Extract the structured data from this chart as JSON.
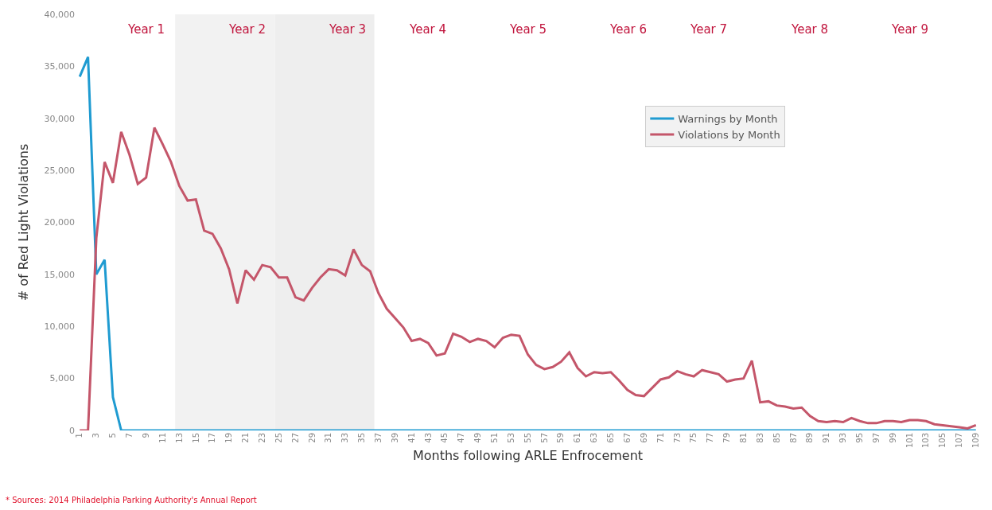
{
  "chart_data": {
    "type": "line",
    "xlabel": "Months following ARLE Enfrocement",
    "ylabel": "# of Red Light Violations",
    "categories": [
      "1",
      null,
      "3",
      null,
      "5",
      null,
      "7",
      null,
      "9",
      null,
      "11",
      null,
      "13",
      null,
      "15",
      null,
      "17",
      null,
      "19",
      null,
      "21",
      null,
      "23",
      null,
      "25",
      null,
      "27",
      null,
      "29",
      null,
      "31",
      null,
      "33",
      null,
      "35",
      null,
      "37",
      null,
      "39",
      null,
      "41",
      null,
      "43",
      null,
      "45",
      null,
      "47",
      null,
      "49",
      null,
      "51",
      null,
      "53",
      null,
      "55",
      null,
      "57",
      null,
      "59",
      null,
      "61",
      null,
      "63",
      null,
      "65",
      null,
      "67",
      null,
      "69",
      null,
      "71",
      null,
      "73",
      null,
      "75",
      null,
      "77",
      null,
      "79",
      null,
      "81",
      null,
      "83",
      null,
      "85",
      null,
      "87",
      null,
      "89",
      null,
      "91",
      null,
      "93",
      null,
      "95",
      null,
      "97",
      null,
      "99",
      null,
      "101",
      null,
      "103",
      null,
      "105",
      null,
      "107",
      null,
      "109"
    ],
    "series": [
      {
        "name": "Warnings by Month",
        "color": "#1f9bd1",
        "values": [
          34000,
          35900,
          15000,
          16400,
          3200,
          0,
          0,
          0,
          0,
          0,
          0,
          0,
          0,
          0,
          0,
          0,
          0,
          0,
          0,
          0,
          0,
          0,
          0,
          0,
          0,
          0,
          0,
          0,
          0,
          0,
          0,
          0,
          0,
          0,
          0,
          0,
          0,
          0,
          0,
          0,
          0,
          0,
          0,
          0,
          0,
          0,
          0,
          0,
          0,
          0,
          0,
          0,
          0,
          0,
          0,
          0,
          0,
          0,
          0,
          0,
          0,
          0,
          0,
          0,
          0,
          0,
          0,
          0,
          0,
          0,
          0,
          0,
          0,
          0,
          0,
          0,
          0,
          0,
          0,
          0,
          0,
          0,
          0,
          0,
          0,
          0,
          0,
          0,
          0,
          0,
          0,
          0,
          0,
          0,
          0,
          0,
          0,
          0,
          0,
          0,
          0,
          0,
          0,
          0,
          0,
          0,
          0,
          0,
          0
        ]
      },
      {
        "name": "Violations by Month",
        "color": "#c4566a",
        "values": [
          0,
          0,
          18500,
          25800,
          23800,
          28700,
          26500,
          23700,
          24300,
          29100,
          27500,
          25800,
          23500,
          22100,
          22200,
          19200,
          18900,
          17500,
          15500,
          12200,
          15400,
          14500,
          15900,
          15700,
          14700,
          14700,
          12800,
          12500,
          13700,
          14700,
          15500,
          15400,
          14900,
          17400,
          15900,
          15300,
          13200,
          11700,
          10800,
          9900,
          8600,
          8800,
          8400,
          7200,
          7400,
          9300,
          9000,
          8500,
          8800,
          8600,
          8000,
          8900,
          9200,
          9100,
          7300,
          6300,
          5900,
          6100,
          6600,
          7500,
          6000,
          5200,
          5600,
          5500,
          5600,
          4800,
          3900,
          3400,
          3300,
          4100,
          4900,
          5100,
          5700,
          5400,
          5200,
          5800,
          5600,
          5400,
          4700,
          4900,
          5000,
          6700,
          2700,
          2800,
          2400,
          2300,
          2100,
          2200,
          1400,
          900,
          800,
          900,
          800,
          1200,
          900,
          700,
          700,
          900,
          900,
          800,
          1000,
          1000,
          900,
          600,
          500,
          400,
          300,
          200,
          500
        ]
      }
    ],
    "ylim": [
      0,
      40000
    ],
    "yticks": [
      {
        "value": 0,
        "label": "0"
      },
      {
        "value": 5000,
        "label": "5,000"
      },
      {
        "value": 10000,
        "label": "10,000"
      },
      {
        "value": 15000,
        "label": "15,000"
      },
      {
        "value": 20000,
        "label": "20,000"
      },
      {
        "value": 25000,
        "label": "25,000"
      },
      {
        "value": 30000,
        "label": "30,000"
      },
      {
        "value": 35000,
        "label": "35,000"
      },
      {
        "value": 40000,
        "label": "40,000"
      }
    ],
    "bands": [
      {
        "axis": "x",
        "from": "13",
        "to": "25",
        "color": "#f2f2f2"
      },
      {
        "axis": "x",
        "from": "25",
        "to": "37",
        "color": "#eeeeee"
      }
    ],
    "annotations": [
      "Year 1",
      "Year 2",
      "Year 3",
      "Year 4",
      "Year 5",
      "Year 6",
      "Year 7",
      "Year 8",
      "Year 9",
      "* Sources: 2014 Philadelphia Parking Authority's Annual Report"
    ],
    "legend": "right",
    "grid": false,
    "marker": "none",
    "line_style": "solid"
  }
}
